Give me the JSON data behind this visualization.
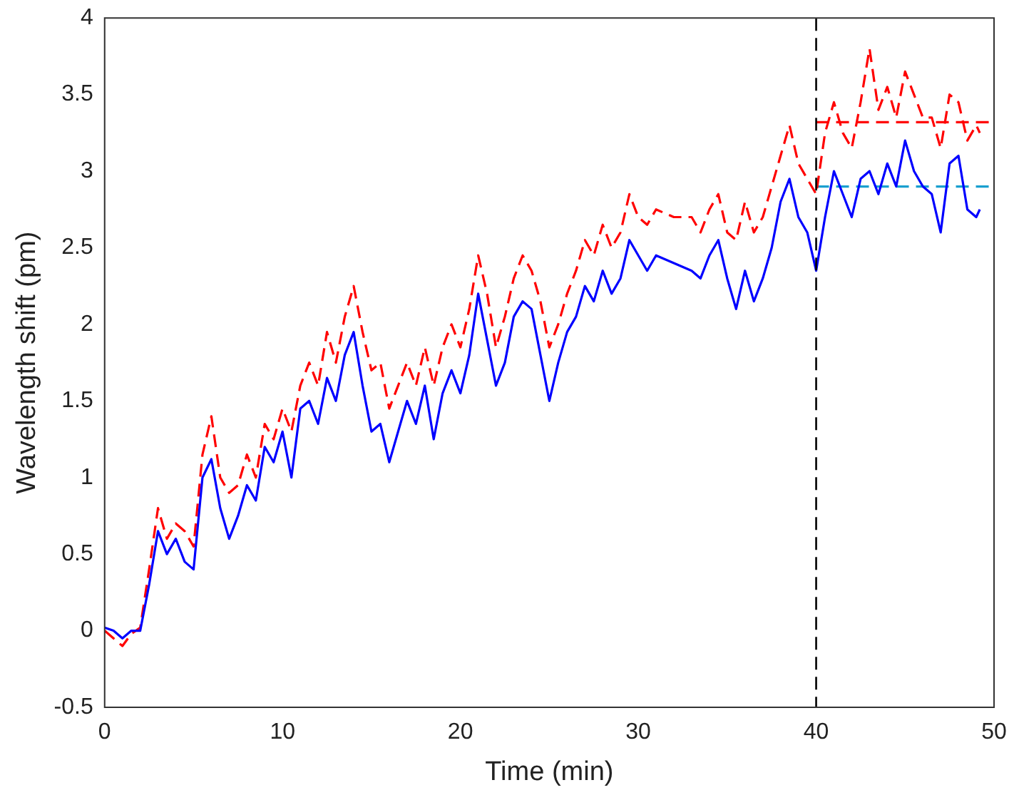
{
  "chart_data": {
    "type": "line",
    "xlabel": "Time (min)",
    "ylabel": "Wavelength shift (pm)",
    "xlim": [
      0,
      50
    ],
    "xticks": [
      0,
      10,
      20,
      30,
      40,
      50
    ],
    "ylim": [
      -0.5,
      4
    ],
    "yticks": [
      -0.5,
      0,
      0.5,
      1,
      1.5,
      2,
      2.5,
      3,
      3.5,
      4
    ],
    "grid": false,
    "legend": false,
    "marker": "none",
    "series": [
      {
        "color": "#0000ff",
        "line_style": "solid",
        "x": [
          0,
          0.5,
          1,
          1.5,
          2,
          2.5,
          3,
          3.5,
          4,
          4.5,
          5,
          5.5,
          6,
          6.5,
          7,
          7.5,
          8,
          8.5,
          9,
          9.5,
          10,
          10.5,
          11,
          11.5,
          12,
          12.5,
          13,
          13.5,
          14,
          14.5,
          15,
          15.5,
          16,
          16.5,
          17,
          17.5,
          18,
          18.5,
          19,
          19.5,
          20,
          20.5,
          21,
          21.5,
          22,
          22.5,
          23,
          23.5,
          24,
          24.5,
          25,
          25.5,
          26,
          26.5,
          27,
          27.5,
          28,
          28.5,
          29,
          29.5,
          30,
          30.5,
          31,
          32,
          33,
          33.5,
          34,
          34.5,
          35,
          35.5,
          36,
          36.5,
          37,
          37.5,
          38,
          38.5,
          39,
          39.5,
          40,
          40.5,
          41,
          41.5,
          42,
          42.5,
          43,
          43.5,
          44,
          44.5,
          45,
          45.5,
          46,
          46.5,
          47,
          47.5,
          48,
          48.5,
          49,
          49.2
        ],
        "values": [
          0.02,
          0.0,
          -0.05,
          0.0,
          0.0,
          0.3,
          0.65,
          0.5,
          0.6,
          0.45,
          0.4,
          1.0,
          1.12,
          0.8,
          0.6,
          0.75,
          0.95,
          0.85,
          1.2,
          1.1,
          1.3,
          1.0,
          1.45,
          1.5,
          1.35,
          1.65,
          1.5,
          1.8,
          1.95,
          1.6,
          1.3,
          1.35,
          1.1,
          1.3,
          1.5,
          1.35,
          1.6,
          1.25,
          1.55,
          1.7,
          1.55,
          1.8,
          2.2,
          1.9,
          1.6,
          1.75,
          2.05,
          2.15,
          2.1,
          1.8,
          1.5,
          1.75,
          1.95,
          2.05,
          2.25,
          2.15,
          2.35,
          2.2,
          2.3,
          2.55,
          2.45,
          2.35,
          2.45,
          2.4,
          2.35,
          2.3,
          2.45,
          2.55,
          2.3,
          2.1,
          2.35,
          2.15,
          2.3,
          2.5,
          2.8,
          2.95,
          2.7,
          2.6,
          2.35,
          2.7,
          3.0,
          2.85,
          2.7,
          2.95,
          3.0,
          2.85,
          3.05,
          2.9,
          3.2,
          3.0,
          2.9,
          2.85,
          2.6,
          3.05,
          3.1,
          2.75,
          2.7,
          2.75
        ]
      },
      {
        "color": "#ff0000",
        "line_style": "dashed",
        "x": [
          0,
          0.5,
          1,
          1.5,
          2,
          2.5,
          3,
          3.5,
          4,
          4.5,
          5,
          5.5,
          6,
          6.5,
          7,
          7.5,
          8,
          8.5,
          9,
          9.5,
          10,
          10.5,
          11,
          11.5,
          12,
          12.5,
          13,
          13.5,
          14,
          14.5,
          15,
          15.5,
          16,
          16.5,
          17,
          17.5,
          18,
          18.5,
          19,
          19.5,
          20,
          20.5,
          21,
          21.5,
          22,
          22.5,
          23,
          23.5,
          24,
          24.5,
          25,
          25.5,
          26,
          26.5,
          27,
          27.5,
          28,
          28.5,
          29,
          29.5,
          30,
          30.5,
          31,
          32,
          33,
          33.5,
          34,
          34.5,
          35,
          35.5,
          36,
          36.5,
          37,
          37.5,
          38,
          38.5,
          39,
          39.5,
          40,
          40.5,
          41,
          41.5,
          42,
          42.5,
          43,
          43.5,
          44,
          44.5,
          45,
          45.5,
          46,
          46.5,
          47,
          47.5,
          48,
          48.5,
          49,
          49.2
        ],
        "values": [
          0.0,
          -0.05,
          -0.1,
          -0.02,
          0.02,
          0.4,
          0.8,
          0.6,
          0.7,
          0.65,
          0.55,
          1.15,
          1.4,
          1.0,
          0.9,
          0.95,
          1.15,
          1.0,
          1.35,
          1.25,
          1.45,
          1.3,
          1.6,
          1.75,
          1.6,
          1.95,
          1.75,
          2.05,
          2.25,
          1.95,
          1.7,
          1.75,
          1.45,
          1.6,
          1.75,
          1.6,
          1.85,
          1.6,
          1.85,
          2.0,
          1.85,
          2.1,
          2.45,
          2.2,
          1.85,
          2.05,
          2.3,
          2.45,
          2.35,
          2.15,
          1.85,
          2.0,
          2.2,
          2.35,
          2.55,
          2.45,
          2.65,
          2.5,
          2.6,
          2.85,
          2.7,
          2.65,
          2.75,
          2.7,
          2.7,
          2.6,
          2.75,
          2.85,
          2.6,
          2.55,
          2.8,
          2.6,
          2.7,
          2.9,
          3.1,
          3.3,
          3.05,
          2.95,
          2.85,
          3.25,
          3.45,
          3.25,
          3.15,
          3.45,
          3.8,
          3.4,
          3.55,
          3.35,
          3.65,
          3.5,
          3.35,
          3.35,
          3.15,
          3.5,
          3.45,
          3.2,
          3.3,
          3.25
        ]
      },
      {
        "color": "#ff0000",
        "line_style": "dashed",
        "x": [
          40,
          50
        ],
        "values": [
          3.32,
          3.32
        ]
      },
      {
        "color": "#1a9fcf",
        "line_style": "dashed",
        "x": [
          40,
          50
        ],
        "values": [
          2.9,
          2.9
        ]
      }
    ],
    "ref_lines": [
      {
        "axis": "x",
        "value": 40,
        "color": "#000000",
        "line_style": "dashed"
      }
    ]
  }
}
